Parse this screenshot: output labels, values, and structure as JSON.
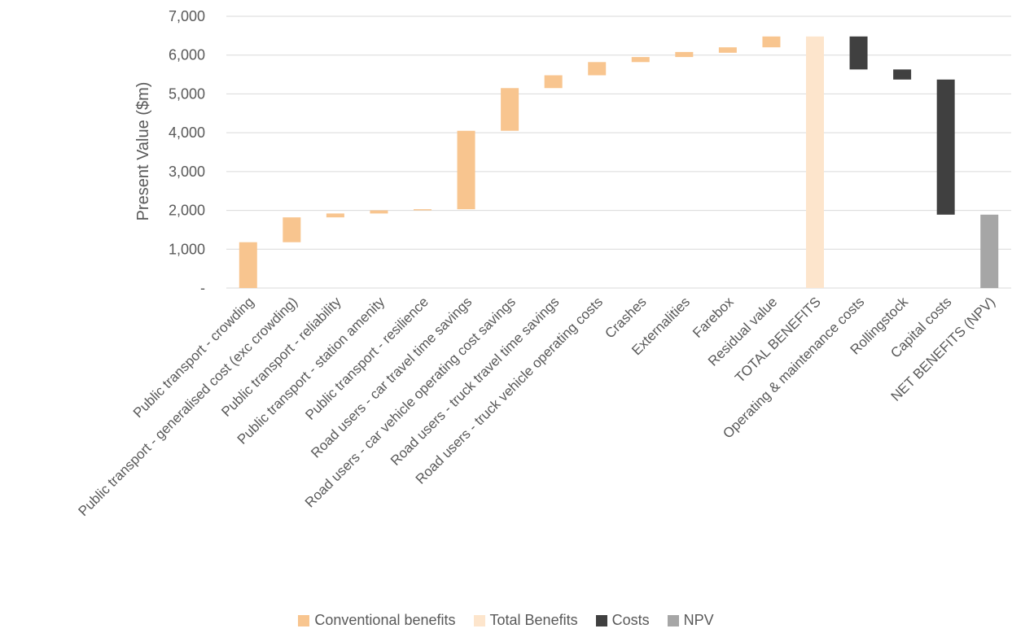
{
  "chart_data": {
    "type": "bar",
    "subtype": "waterfall",
    "ylabel": "Present Value ($m)",
    "ylim": [
      0,
      7000
    ],
    "yticks": [
      {
        "value": 0,
        "label": "-"
      },
      {
        "value": 1000,
        "label": "1,000"
      },
      {
        "value": 2000,
        "label": "2,000"
      },
      {
        "value": 3000,
        "label": "3,000"
      },
      {
        "value": 4000,
        "label": "4,000"
      },
      {
        "value": 5000,
        "label": "5,000"
      },
      {
        "value": 6000,
        "label": "6,000"
      },
      {
        "value": 7000,
        "label": "7,000"
      }
    ],
    "grid": true,
    "legend_position": "bottom",
    "series": [
      {
        "name": "Conventional benefits",
        "color": "#F8C58F"
      },
      {
        "name": "Total Benefits",
        "color": "#FDE5CC"
      },
      {
        "name": "Costs",
        "color": "#404040"
      },
      {
        "name": "NPV",
        "color": "#A6A6A6"
      }
    ],
    "bars": [
      {
        "category": "Public transport - crowding",
        "series": "Conventional benefits",
        "low": 0,
        "high": 1180
      },
      {
        "category": "Public transport - generalised cost (exc crowding)",
        "series": "Conventional benefits",
        "low": 1180,
        "high": 1820
      },
      {
        "category": "Public transport - reliability",
        "series": "Conventional benefits",
        "low": 1820,
        "high": 1920
      },
      {
        "category": "Public transport - station amenity",
        "series": "Conventional benefits",
        "low": 1920,
        "high": 2000
      },
      {
        "category": "Public transport - resilience",
        "series": "Conventional benefits",
        "low": 2000,
        "high": 2030
      },
      {
        "category": "Road users - car travel time savings",
        "series": "Conventional benefits",
        "low": 2030,
        "high": 4050
      },
      {
        "category": "Road users - car vehicle operating cost savings",
        "series": "Conventional benefits",
        "low": 4050,
        "high": 5150
      },
      {
        "category": "Road users - truck travel time savings",
        "series": "Conventional benefits",
        "low": 5150,
        "high": 5480
      },
      {
        "category": "Road users - truck vehicle operating costs",
        "series": "Conventional benefits",
        "low": 5480,
        "high": 5820
      },
      {
        "category": "Crashes",
        "series": "Conventional benefits",
        "low": 5820,
        "high": 5950
      },
      {
        "category": "Externalities",
        "series": "Conventional benefits",
        "low": 5950,
        "high": 6080
      },
      {
        "category": "Farebox",
        "series": "Conventional benefits",
        "low": 6060,
        "high": 6200
      },
      {
        "category": "Residual value",
        "series": "Conventional benefits",
        "low": 6200,
        "high": 6480
      },
      {
        "category": "TOTAL BENEFITS",
        "series": "Total Benefits",
        "low": 0,
        "high": 6480
      },
      {
        "category": "Operating & maintenance costs",
        "series": "Costs",
        "low": 5630,
        "high": 6480
      },
      {
        "category": "Rollingstock",
        "series": "Costs",
        "low": 5370,
        "high": 5630
      },
      {
        "category": "Capital costs",
        "series": "Costs",
        "low": 1890,
        "high": 5370
      },
      {
        "category": "NET BENEFITS (NPV)",
        "series": "NPV",
        "low": 0,
        "high": 1890
      }
    ]
  }
}
